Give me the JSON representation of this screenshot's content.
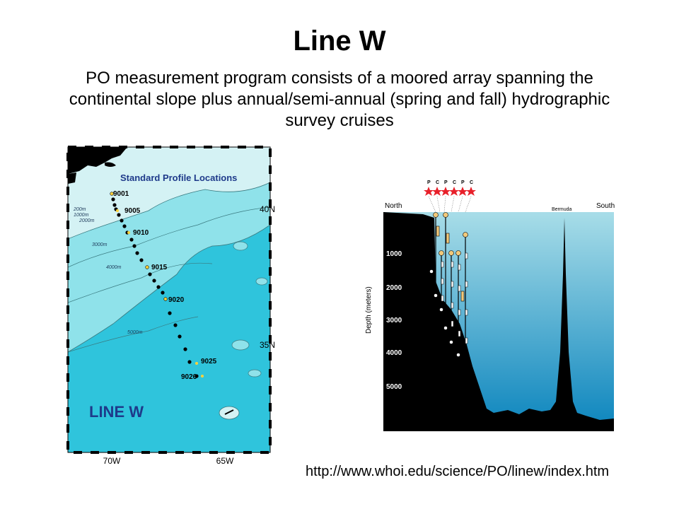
{
  "slide": {
    "title": "Line W",
    "subtitle": "PO measurement program consists of a moored array spanning the continental slope plus annual/semi-annual (spring and fall) hydrographic survey cruises",
    "url": "http://www.whoi.edu/science/PO/linew/index.htm"
  },
  "map": {
    "title": "Standard Profile Locations",
    "logo_text": "LINE W",
    "lat_labels": [
      "40N",
      "35N"
    ],
    "lon_labels": [
      "70W",
      "65W"
    ],
    "contour_labels": [
      "200m",
      "1000m",
      "2000m",
      "3000m",
      "4000m",
      "5000m"
    ],
    "station_labels": [
      "9001",
      "9005",
      "9010",
      "9015",
      "9020",
      "9025",
      "9026"
    ],
    "colors": {
      "deep_ocean": "#2fc4dc",
      "shelf": "#d4f2f4",
      "slope": "#8fe2ea",
      "land": "#000000",
      "title": "#1e3a8a"
    }
  },
  "section": {
    "mooring_codes": [
      "P",
      "C",
      "P",
      "C",
      "P",
      "C"
    ],
    "north_label": "North",
    "south_label": "South",
    "bermuda_label": "Bermuda",
    "depth_axis_label": "Depth (meters)",
    "depth_ticks": [
      "1000",
      "2000",
      "3000",
      "4000",
      "5000"
    ],
    "colors": {
      "water_top": "#a8dde8",
      "water_bottom": "#0a84bd",
      "seafloor": "#000000",
      "stars": "#e8202a"
    }
  }
}
